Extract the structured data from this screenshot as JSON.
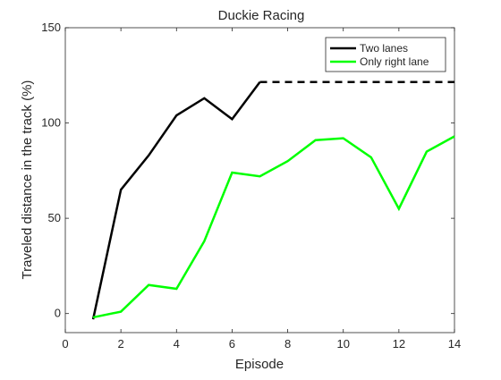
{
  "chart_data": {
    "type": "line",
    "title": "Duckie Racing",
    "xlabel": "Episode",
    "ylabel": "Traveled distance in the track (%)",
    "xlim": [
      0,
      14
    ],
    "ylim": [
      -10,
      150
    ],
    "xticks": [
      0,
      2,
      4,
      6,
      8,
      10,
      12,
      14
    ],
    "yticks": [
      0,
      50,
      100,
      150
    ],
    "grid": false,
    "legend_position": "top-right",
    "series": [
      {
        "name": "Two lanes",
        "color": "#000000",
        "x": [
          1,
          2,
          3,
          4,
          5,
          6,
          7
        ],
        "values": [
          -3,
          65,
          83,
          104,
          113,
          102,
          121.5
        ],
        "extension": {
          "style": "dashed",
          "x": [
            7,
            14
          ],
          "values": [
            121.5,
            121.5
          ]
        }
      },
      {
        "name": "Only right lane",
        "color": "#00ff00",
        "x": [
          1,
          2,
          3,
          4,
          5,
          6,
          7,
          8,
          9,
          10,
          11,
          12,
          13,
          14
        ],
        "values": [
          -2,
          1,
          15,
          13,
          38,
          74,
          72,
          80,
          91,
          92,
          82,
          55,
          85,
          93
        ]
      }
    ]
  }
}
